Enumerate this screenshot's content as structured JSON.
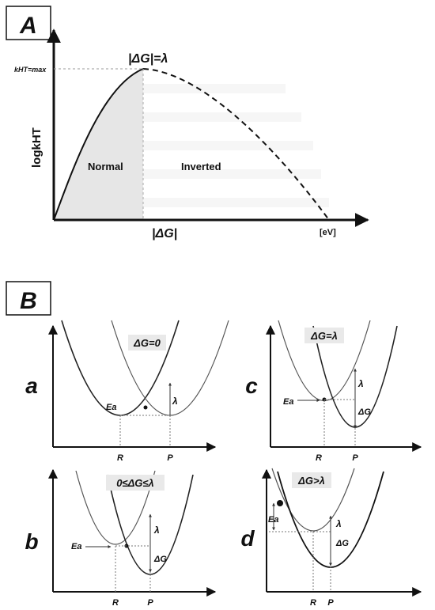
{
  "panel_a": {
    "label": "A",
    "peak_label": "|ΔG|=λ",
    "kmax_label": "kHT=max",
    "y_axis_label": "logkHT",
    "x_label_mid": "|ΔG|",
    "x_unit": "[eV]",
    "region_normal": "Normal",
    "region_inverted": "Inverted"
  },
  "panel_b": {
    "label": "B",
    "plots": [
      {
        "id": "a",
        "letter": "a",
        "condition": "ΔG=0",
        "ea": "Ea",
        "lambda": "λ",
        "dg": "",
        "r": "R",
        "p": "P"
      },
      {
        "id": "c",
        "letter": "c",
        "condition": "ΔG=λ",
        "ea": "Ea",
        "lambda": "λ",
        "dg": "ΔG",
        "r": "R",
        "p": "P"
      },
      {
        "id": "b",
        "letter": "b",
        "condition": "0≤ΔG≤λ",
        "ea": "Ea",
        "lambda": "λ",
        "dg": "ΔG",
        "r": "R",
        "p": "P"
      },
      {
        "id": "d",
        "letter": "d",
        "condition": "ΔG>λ",
        "ea": "Ea",
        "lambda": "λ",
        "dg": "ΔG",
        "r": "R",
        "p": "P"
      }
    ]
  }
}
